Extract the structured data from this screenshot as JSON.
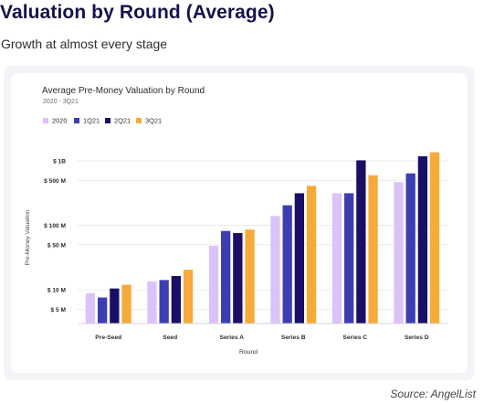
{
  "header": {
    "title": "Valuation by Round (Average)",
    "subtitle": "Growth at almost every stage"
  },
  "footer": {
    "source": "Source: AngelList"
  },
  "chart_data": {
    "type": "bar",
    "title": "Average Pre-Money Valuation by Round",
    "subtitle": "2020 - 3Q21",
    "xlabel": "Round",
    "ylabel": "Pre-Money Valuation",
    "scale": "log",
    "unit": "$",
    "ylim": [
      3000000,
      1300000000
    ],
    "grid": true,
    "legend_position": "top-left",
    "categories": [
      "Pre-Seed",
      "Seed",
      "Series A",
      "Series B",
      "Series C",
      "Series D"
    ],
    "series": [
      {
        "name": "2020",
        "color": "#dcc2fb",
        "values": [
          8900000,
          13500000,
          48000000,
          140000000,
          315000000,
          470000000
        ]
      },
      {
        "name": "1Q21",
        "color": "#3d3db2",
        "values": [
          7600000,
          14200000,
          82000000,
          205000000,
          315000000,
          640000000
        ]
      },
      {
        "name": "2Q21",
        "color": "#1a0f64",
        "values": [
          10500000,
          16400000,
          76000000,
          315000000,
          1020000000,
          1180000000
        ]
      },
      {
        "name": "3Q21",
        "color": "#f6aa39",
        "values": [
          12000000,
          20500000,
          86000000,
          410000000,
          600000000,
          1360000000
        ]
      }
    ],
    "y_ticks": [
      {
        "label": "$ 1B",
        "value": 1000000000
      },
      {
        "label": "$ 500 M",
        "value": 500000000
      },
      {
        "label": "$ 100 M",
        "value": 100000000
      },
      {
        "label": "$ 50 M",
        "value": 50000000
      },
      {
        "label": "$ 10 M",
        "value": 10000000
      },
      {
        "label": "$ 5 M",
        "value": 5000000
      }
    ]
  }
}
